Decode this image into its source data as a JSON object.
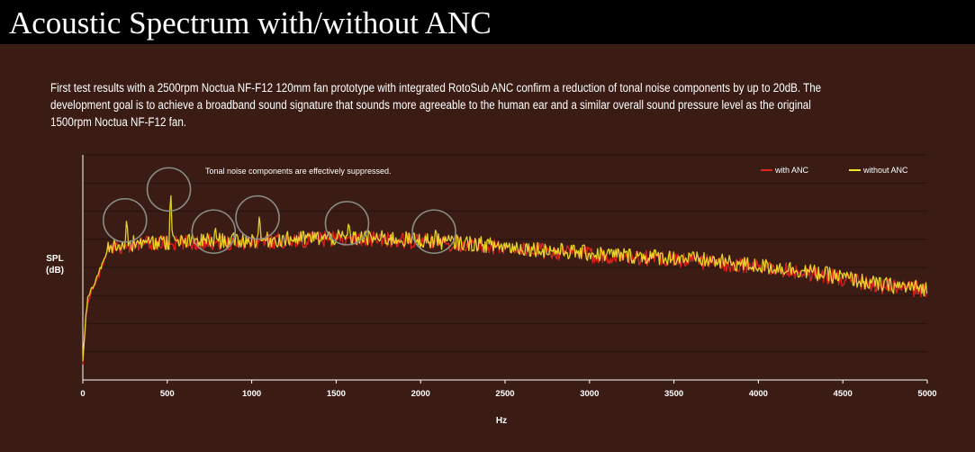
{
  "header": {
    "title": "Acoustic Spectrum with/without ANC"
  },
  "intro": {
    "text": "First test results with a 2500rpm Noctua NF-F12 120mm fan prototype with integrated RotoSub ANC confirm a reduction of tonal noise components by up to 20dB. The development goal is to achieve a broadband sound signature that sounds more agreeable to the human ear and a similar overall sound pressure level as the original 1500rpm Noctua NF-F12 fan."
  },
  "colors": {
    "background": "#3b1c15",
    "title_bar": "#000000",
    "with_anc": "#e8231f",
    "without_anc": "#f4e62a",
    "gridline": "#2a120d",
    "circle": "#8a8d86"
  },
  "chart_data": {
    "type": "line",
    "title": "",
    "xlabel": "Hz",
    "ylabel": "SPL\n(dB)",
    "xlim": [
      0,
      5000
    ],
    "x_ticks": [
      0,
      500,
      1000,
      1500,
      2000,
      2500,
      3000,
      3500,
      4000,
      4500,
      5000
    ],
    "x_tick_labels": [
      "0",
      "500",
      "1000",
      "1500",
      "2000",
      "2500",
      "3000",
      "3500",
      "4000",
      "4500",
      "5000"
    ],
    "y_tick_labels": [],
    "y_scale": "dB, unlabeled",
    "ylim": [
      0,
      8
    ],
    "horizontal_grid_lines": 8,
    "grid": true,
    "legend": {
      "placement": "top-right",
      "entries": [
        "with ANC",
        "without ANC"
      ]
    },
    "annotation": "Tonal noise components are effectively suppressed.",
    "highlighted_peaks_hz": [
      260,
      520,
      785,
      1045,
      1575,
      2090
    ],
    "series": [
      {
        "name": "with ANC",
        "color": "#e8231f",
        "x": [
          0,
          10,
          20,
          30,
          50,
          75,
          100,
          150,
          200,
          260,
          300,
          400,
          520,
          600,
          700,
          785,
          900,
          1045,
          1200,
          1400,
          1575,
          1700,
          1900,
          2090,
          2300,
          2500,
          2700,
          3000,
          3300,
          3500,
          3700,
          4000,
          4200,
          4500,
          4700,
          4800,
          5000
        ],
        "y": [
          0.5,
          1.5,
          2.3,
          2.8,
          3.1,
          3.4,
          3.8,
          4.6,
          4.75,
          4.75,
          4.8,
          4.85,
          4.85,
          4.85,
          4.9,
          4.9,
          4.9,
          4.95,
          4.95,
          5.0,
          5.05,
          5.0,
          4.95,
          4.9,
          4.8,
          4.7,
          4.6,
          4.45,
          4.35,
          4.3,
          4.2,
          4.0,
          3.9,
          3.6,
          3.35,
          3.3,
          3.2
        ]
      },
      {
        "name": "without ANC",
        "color": "#f4e62a",
        "x": [
          0,
          10,
          20,
          30,
          50,
          75,
          100,
          150,
          200,
          260,
          300,
          400,
          520,
          600,
          700,
          785,
          900,
          1045,
          1200,
          1400,
          1575,
          1700,
          1900,
          2090,
          2300,
          2500,
          2700,
          3000,
          3300,
          3500,
          3700,
          4000,
          4200,
          4500,
          4700,
          4800,
          5000
        ],
        "y": [
          0.6,
          1.6,
          2.4,
          2.9,
          3.2,
          3.5,
          3.9,
          4.65,
          4.8,
          5.8,
          4.85,
          4.9,
          6.9,
          4.9,
          4.95,
          5.4,
          4.95,
          5.9,
          5.0,
          5.05,
          5.7,
          5.05,
          5.0,
          5.4,
          4.85,
          4.75,
          4.65,
          4.5,
          4.4,
          4.35,
          4.25,
          4.05,
          3.95,
          3.65,
          3.4,
          3.35,
          3.25
        ]
      }
    ]
  }
}
